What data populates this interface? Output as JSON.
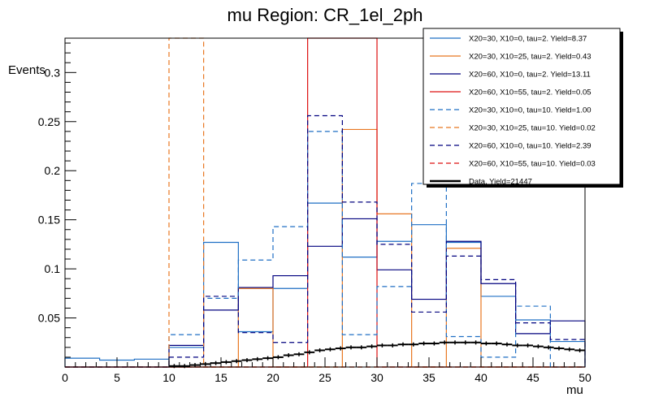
{
  "chart_data": {
    "type": "histogram-overlay",
    "title": "mu Region: CR_1el_2ph",
    "xlabel": "mu",
    "ylabel": "Events",
    "xlim": [
      0,
      50
    ],
    "ylim": [
      0,
      0.335
    ],
    "x_ticks": [
      0,
      5,
      10,
      15,
      20,
      25,
      30,
      35,
      40,
      45,
      50
    ],
    "y_ticks": [
      0.05,
      0.1,
      0.15,
      0.2,
      0.25,
      0.3
    ],
    "y_tick_labels": [
      "0.05",
      "0.1",
      "0.15",
      "0.2",
      "0.25",
      "0.3"
    ],
    "bin_edges": [
      0,
      3.33,
      6.67,
      10,
      13.33,
      16.67,
      20,
      23.33,
      26.67,
      30,
      33.33,
      36.67,
      40,
      43.33,
      46.67,
      50
    ],
    "series": [
      {
        "name": "X20=30, X10=0, tau=2. Yield=8.37",
        "color": "#1f6fc4",
        "dashed": false,
        "values": [
          0.009,
          0.007,
          0.008,
          0.02,
          0.127,
          0.036,
          0.08,
          0.167,
          0.112,
          0.128,
          0.145,
          0.127,
          0.072,
          0.048,
          0.026
        ]
      },
      {
        "name": "X20=30, X10=25, tau=2. Yield=0.43",
        "color": "#e87722",
        "dashed": false,
        "values": [
          0,
          0,
          0,
          0,
          0,
          0.08,
          0,
          0,
          0.242,
          0.156,
          0,
          0.121,
          0,
          0,
          0
        ]
      },
      {
        "name": "X20=60, X10=0, tau=2. Yield=13.11",
        "color": "#00007f",
        "dashed": false,
        "values": [
          0,
          0,
          0,
          0.022,
          0.058,
          0.081,
          0.093,
          0.123,
          0.151,
          0.099,
          0.069,
          0.128,
          0.085,
          0.034,
          0.047
        ]
      },
      {
        "name": "X20=60, X10=55, tau=2. Yield=0.05",
        "color": "#dd1111",
        "dashed": false,
        "values": [
          0,
          0,
          0,
          0,
          0,
          0,
          0,
          0.335,
          0.335,
          0,
          0,
          0,
          0,
          0,
          0
        ]
      },
      {
        "name": "X20=30, X10=0, tau=10. Yield=1.00",
        "color": "#1f6fc4",
        "dashed": true,
        "values": [
          0,
          0,
          0,
          0.033,
          0.07,
          0.109,
          0.143,
          0.24,
          0.033,
          0.082,
          0.187,
          0.031,
          0.01,
          0.062,
          0
        ]
      },
      {
        "name": "X20=30, X10=25, tau=10. Yield=0.02",
        "color": "#e87722",
        "dashed": true,
        "values": [
          0,
          0,
          0,
          0.335,
          0,
          0,
          0,
          0,
          0,
          0,
          0,
          0,
          0,
          0,
          0
        ]
      },
      {
        "name": "X20=60, X10=0, tau=10. Yield=2.39",
        "color": "#00007f",
        "dashed": true,
        "values": [
          0,
          0,
          0,
          0.01,
          0.072,
          0.035,
          0.025,
          0.256,
          0.168,
          0.125,
          0.056,
          0.113,
          0.089,
          0.045,
          0.028
        ]
      },
      {
        "name": "X20=60, X10=55, tau=10. Yield=0.03",
        "color": "#dd1111",
        "dashed": true,
        "values": [
          0,
          0,
          0,
          0,
          0,
          0,
          0,
          0,
          0,
          0,
          0,
          0,
          0,
          0,
          0
        ]
      }
    ],
    "data": {
      "name": "Data. Yield=21447",
      "color": "#000000",
      "x": [
        11,
        12,
        13,
        14,
        15,
        16,
        17,
        18,
        19,
        20,
        21,
        22,
        23,
        24,
        25,
        26,
        27,
        28,
        29,
        30,
        31,
        32,
        33,
        34,
        35,
        36,
        37,
        38,
        39,
        40,
        41,
        42,
        43,
        44,
        45,
        46,
        47,
        48,
        49,
        50
      ],
      "y": [
        0.001,
        0.001,
        0.002,
        0.003,
        0.004,
        0.005,
        0.006,
        0.007,
        0.008,
        0.009,
        0.01,
        0.012,
        0.013,
        0.015,
        0.017,
        0.018,
        0.019,
        0.02,
        0.02,
        0.021,
        0.022,
        0.022,
        0.023,
        0.023,
        0.024,
        0.024,
        0.025,
        0.025,
        0.025,
        0.025,
        0.024,
        0.024,
        0.023,
        0.022,
        0.022,
        0.021,
        0.02,
        0.019,
        0.018,
        0.017
      ]
    },
    "legend_position": "top-right"
  }
}
